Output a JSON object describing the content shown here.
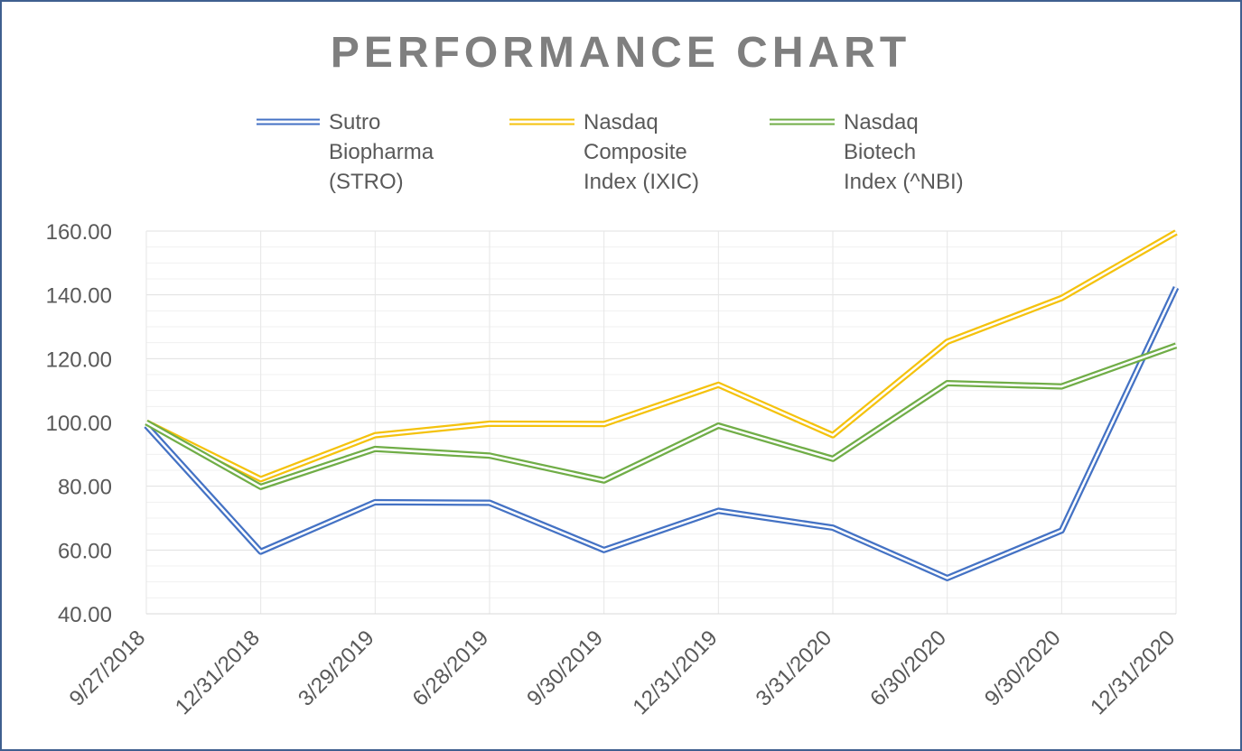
{
  "chart_data": {
    "type": "line",
    "title": "PERFORMANCE CHART",
    "xlabel": "",
    "ylabel": "",
    "ylim": [
      40,
      160
    ],
    "yticks": [
      "160.00",
      "140.00",
      "120.00",
      "100.00",
      "80.00",
      "60.00",
      "40.00"
    ],
    "ytick_values": [
      160,
      140,
      120,
      100,
      80,
      60,
      40
    ],
    "grid": true,
    "legend_position": "top",
    "categories": [
      "9/27/2018",
      "12/31/2018",
      "3/29/2019",
      "6/28/2019",
      "9/30/2019",
      "12/31/2019",
      "3/31/2020",
      "6/30/2020",
      "9/30/2020",
      "12/31/2020"
    ],
    "series": [
      {
        "name": "Sutro Biopharma (STRO)",
        "name_lines": [
          "Sutro",
          "Biopharma",
          "(STRO)"
        ],
        "color": "#4472c4",
        "values": [
          99,
          59.5,
          75,
          74.8,
          60,
          72.3,
          67,
          51.2,
          66.1,
          142.3
        ]
      },
      {
        "name": "Nasdaq Composite Index (IXIC)",
        "name_lines": [
          "Nasdaq",
          "Composite",
          "Index (IXIC)"
        ],
        "color": "#f4c20d",
        "values": [
          100,
          82.2,
          96,
          99.6,
          99.5,
          111.8,
          96,
          125.3,
          139,
          159.6
        ]
      },
      {
        "name": "Nasdaq Biotech Index (^NBI)",
        "name_lines": [
          "Nasdaq",
          "Biotech",
          "Index (^NBI)"
        ],
        "color": "#70ad47",
        "values": [
          100,
          79.8,
          91.7,
          89.6,
          81.8,
          99,
          88.6,
          112.3,
          111.3,
          124.1
        ]
      }
    ]
  }
}
